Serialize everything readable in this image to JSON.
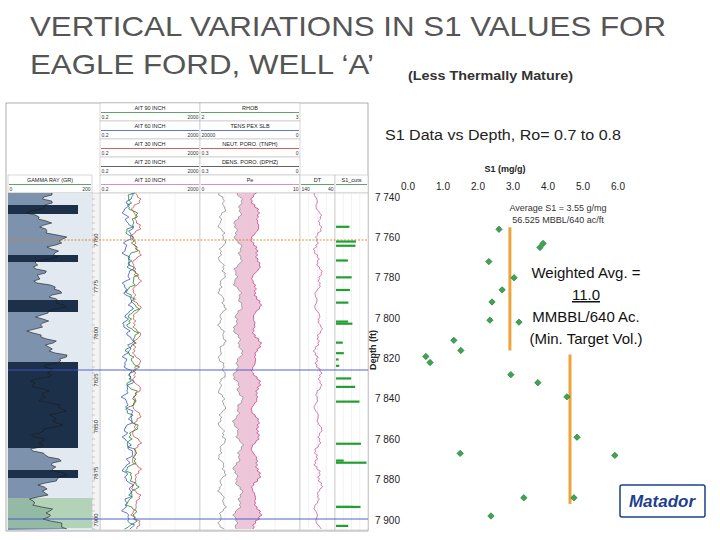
{
  "slide": {
    "title_line1": "VERTICAL VARIATIONS IN S1 VALUES FOR",
    "title_line2": "EAGLE FORD, WELL ‘A’",
    "subtitle": "(Less Thermally Mature)",
    "logo": "Matador"
  },
  "well_log": {
    "header_columns": [
      {
        "rows": [
          {
            "name": "GAMMA RAY (GR)",
            "left": "0",
            "right": "200"
          }
        ]
      },
      {
        "rows": [
          {
            "name": "AIT 90 INCH",
            "left": "0.2",
            "right": "2000"
          },
          {
            "name": "AIT 60 INCH",
            "left": "0.2",
            "right": "2000"
          },
          {
            "name": "AIT 30 INCH",
            "left": "0.2",
            "right": "2000"
          },
          {
            "name": "AIT 20 INCH",
            "left": "0.2",
            "right": "2000"
          },
          {
            "name": "AIT 10 INCH",
            "left": "0.2",
            "right": "2000"
          }
        ]
      },
      {
        "rows": [
          {
            "name": "RHOB",
            "left": "2",
            "right": "3"
          },
          {
            "name": "TENS PEX SLB",
            "left": "20000",
            "right": "0"
          },
          {
            "name": "NEUT. PORO. (TNPH)",
            "left": "0.3",
            "right": "0"
          },
          {
            "name": "DENS. PORO. (DPHZ)",
            "left": "0.3",
            "right": "0"
          },
          {
            "name": "Pe",
            "left": "0",
            "right": "10"
          }
        ]
      },
      {
        "rows": [
          {
            "name": "DT",
            "left": "140",
            "right": "40"
          }
        ]
      },
      {
        "rows": [
          {
            "name": "S1_cuts"
          }
        ]
      }
    ],
    "depth_labels": [
      "7750",
      "7775",
      "7800",
      "7825",
      "7850",
      "7875",
      "7900"
    ]
  },
  "chart_data": {
    "type": "scatter",
    "title": "S1 Data vs Depth, Ro= 0.7 to 0.8",
    "x_label": "S1 (mg/g)",
    "y_label": "Depth (ft)",
    "xlim": [
      0,
      6
    ],
    "xticks": [
      {
        "value": 0,
        "label": "0.0"
      },
      {
        "value": 1,
        "label": "1.0"
      },
      {
        "value": 2,
        "label": "2.0"
      },
      {
        "value": 3,
        "label": "3.0"
      },
      {
        "value": 4,
        "label": "4.0"
      },
      {
        "value": 5,
        "label": "5.0"
      },
      {
        "value": 6,
        "label": "6.0"
      }
    ],
    "ylim": [
      7900,
      7740
    ],
    "yticks": [
      {
        "value": 7740,
        "label": "7 740"
      },
      {
        "value": 7760,
        "label": "7 760"
      },
      {
        "value": 7780,
        "label": "7 780"
      },
      {
        "value": 7800,
        "label": "7 800"
      },
      {
        "value": 7820,
        "label": "7 820"
      },
      {
        "value": 7840,
        "label": "7 840"
      },
      {
        "value": 7860,
        "label": "7 860"
      },
      {
        "value": 7880,
        "label": "7 880"
      },
      {
        "value": 7900,
        "label": "7 900"
      }
    ],
    "grid": false,
    "series": [
      {
        "type": "scatter",
        "color": "#3aa64f",
        "marker": "diamond",
        "x": [
          2.6,
          3.86,
          3.77,
          2.31,
          3.03,
          2.69,
          2.4,
          2.34,
          3.17,
          1.31,
          1.51,
          0.51,
          0.63,
          2.94,
          3.71,
          4.54,
          4.83,
          1.49,
          5.91,
          4.74,
          3.31,
          2.37
        ],
        "values": [
          7756,
          7763,
          7765,
          7772,
          7780,
          7786,
          7792,
          7801,
          7802,
          7811,
          7816,
          7819,
          7822,
          7828,
          7832,
          7839,
          7859,
          7867,
          7868,
          7889,
          7889,
          7898
        ]
      },
      {
        "type": "line",
        "color": "#eda33a",
        "line_style": "solid",
        "x": [
          2.91,
          2.91
        ],
        "values": [
          7755,
          7816
        ]
      },
      {
        "type": "line",
        "color": "#eda33a",
        "line_style": "solid",
        "x": [
          4.63,
          4.63
        ],
        "values": [
          7818,
          7892
        ]
      }
    ],
    "annotations": [
      "Average S1 = 3.55 g/mg",
      "56.525 MBBL/640 ac/ft"
    ],
    "callout": [
      "Weighted Avg. =",
      "11.0",
      "MMBBL/640 Ac.",
      "(Min. Target Vol.)"
    ]
  }
}
